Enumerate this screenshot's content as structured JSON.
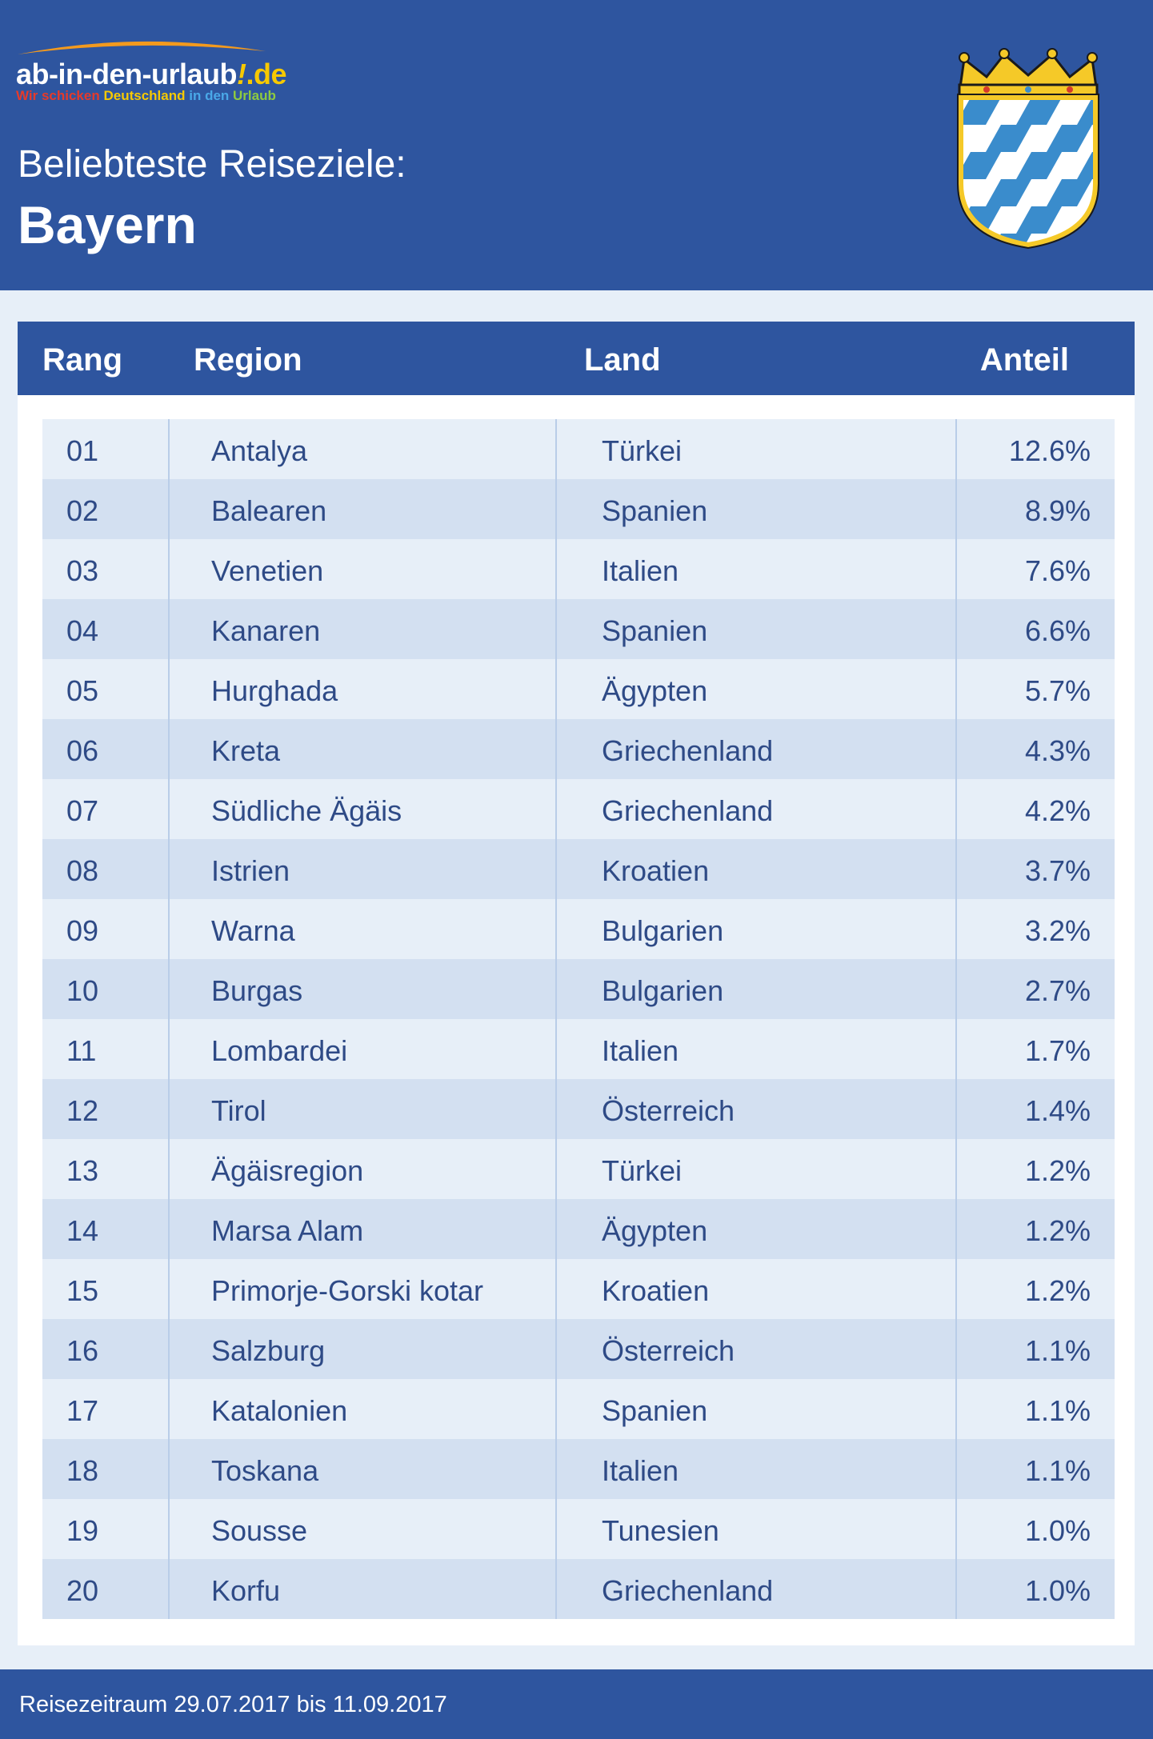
{
  "colors": {
    "brand_blue": "#2e559f",
    "row_light": "#e7eff8",
    "row_dark": "#d3e0f1",
    "row_text": "#2e4a86",
    "crest_blue": "#3a8ccc",
    "crest_gold": "#f5c928"
  },
  "logo": {
    "main": "ab-in-den-urlaub",
    "bang": "!",
    "tld": ".de",
    "tagline": [
      "Wir schicken",
      "Deutschland",
      "in den",
      "Urlaub"
    ]
  },
  "header": {
    "subtitle": "Beliebteste Reiseziele:",
    "title": "Bayern",
    "crest_icon": "bavarian-coat-of-arms-icon"
  },
  "table": {
    "headers": {
      "rang": "Rang",
      "region": "Region",
      "land": "Land",
      "anteil": "Anteil"
    },
    "rows": [
      {
        "rang": "01",
        "region": "Antalya",
        "land": "Türkei",
        "anteil": "12.6%"
      },
      {
        "rang": "02",
        "region": "Balearen",
        "land": "Spanien",
        "anteil": "8.9%"
      },
      {
        "rang": "03",
        "region": "Venetien",
        "land": "Italien",
        "anteil": "7.6%"
      },
      {
        "rang": "04",
        "region": "Kanaren",
        "land": "Spanien",
        "anteil": "6.6%"
      },
      {
        "rang": "05",
        "region": "Hurghada",
        "land": "Ägypten",
        "anteil": "5.7%"
      },
      {
        "rang": "06",
        "region": "Kreta",
        "land": "Griechenland",
        "anteil": "4.3%"
      },
      {
        "rang": "07",
        "region": "Südliche Ägäis",
        "land": "Griechenland",
        "anteil": "4.2%"
      },
      {
        "rang": "08",
        "region": "Istrien",
        "land": "Kroatien",
        "anteil": "3.7%"
      },
      {
        "rang": "09",
        "region": "Warna",
        "land": "Bulgarien",
        "anteil": "3.2%"
      },
      {
        "rang": "10",
        "region": "Burgas",
        "land": "Bulgarien",
        "anteil": "2.7%"
      },
      {
        "rang": "11",
        "region": "Lombardei",
        "land": "Italien",
        "anteil": "1.7%"
      },
      {
        "rang": "12",
        "region": "Tirol",
        "land": "Österreich",
        "anteil": "1.4%"
      },
      {
        "rang": "13",
        "region": "Ägäisregion",
        "land": "Türkei",
        "anteil": "1.2%"
      },
      {
        "rang": "14",
        "region": "Marsa Alam",
        "land": "Ägypten",
        "anteil": "1.2%"
      },
      {
        "rang": "15",
        "region": "Primorje-Gorski kotar",
        "land": "Kroatien",
        "anteil": "1.2%"
      },
      {
        "rang": "16",
        "region": "Salzburg",
        "land": "Österreich",
        "anteil": "1.1%"
      },
      {
        "rang": "17",
        "region": "Katalonien",
        "land": "Spanien",
        "anteil": "1.1%"
      },
      {
        "rang": "18",
        "region": "Toskana",
        "land": "Italien",
        "anteil": "1.1%"
      },
      {
        "rang": "19",
        "region": "Sousse",
        "land": "Tunesien",
        "anteil": "1.0%"
      },
      {
        "rang": "20",
        "region": "Korfu",
        "land": "Griechenland",
        "anteil": "1.0%"
      }
    ]
  },
  "footer": {
    "text": "Reisezeitraum 29.07.2017 bis 11.09.2017"
  }
}
